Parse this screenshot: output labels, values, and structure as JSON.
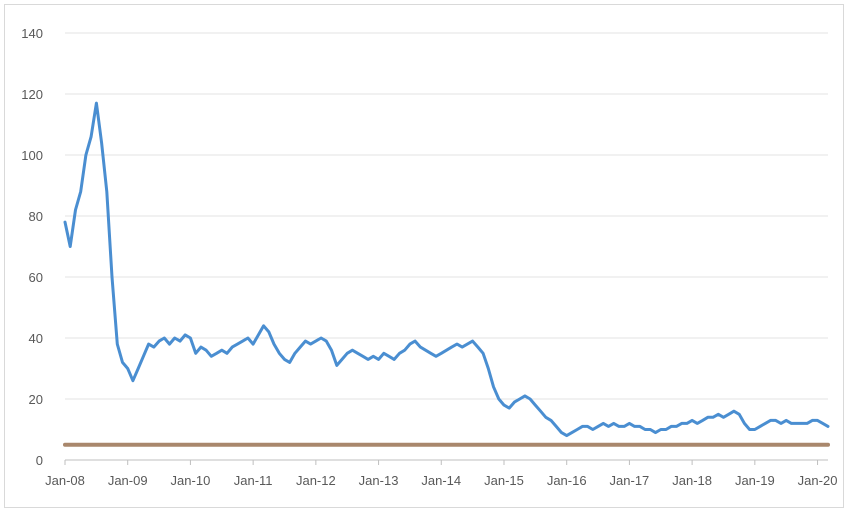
{
  "chart_data": {
    "type": "line",
    "title": "",
    "xlabel": "",
    "ylabel": "",
    "ylim": [
      0,
      140
    ],
    "yticks": [
      0,
      20,
      40,
      60,
      80,
      100,
      120,
      140
    ],
    "xlim": [
      "2008-01",
      "2020-03"
    ],
    "xticks": [
      {
        "label": "Jan-08",
        "date": "2008-01"
      },
      {
        "label": "Jan-09",
        "date": "2009-01"
      },
      {
        "label": "Jan-10",
        "date": "2010-01"
      },
      {
        "label": "Jan-11",
        "date": "2011-01"
      },
      {
        "label": "Jan-12",
        "date": "2012-01"
      },
      {
        "label": "Jan-13",
        "date": "2013-01"
      },
      {
        "label": "Jan-14",
        "date": "2014-01"
      },
      {
        "label": "Jan-15",
        "date": "2015-01"
      },
      {
        "label": "Jan-16",
        "date": "2016-01"
      },
      {
        "label": "Jan-17",
        "date": "2017-01"
      },
      {
        "label": "Jan-18",
        "date": "2018-01"
      },
      {
        "label": "Jan-19",
        "date": "2019-01"
      },
      {
        "label": "Jan-20",
        "date": "2020-01"
      }
    ],
    "grid": true,
    "legend": "none",
    "series": [
      {
        "color": "#4a8ed1",
        "points": [
          [
            "2008-01",
            78
          ],
          [
            "2008-02",
            70
          ],
          [
            "2008-03",
            82
          ],
          [
            "2008-04",
            88
          ],
          [
            "2008-05",
            100
          ],
          [
            "2008-06",
            106
          ],
          [
            "2008-07",
            117
          ],
          [
            "2008-08",
            104
          ],
          [
            "2008-09",
            88
          ],
          [
            "2008-10",
            60
          ],
          [
            "2008-11",
            38
          ],
          [
            "2008-12",
            32
          ],
          [
            "2009-01",
            30
          ],
          [
            "2009-02",
            26
          ],
          [
            "2009-03",
            30
          ],
          [
            "2009-04",
            34
          ],
          [
            "2009-05",
            38
          ],
          [
            "2009-06",
            37
          ],
          [
            "2009-07",
            39
          ],
          [
            "2009-08",
            40
          ],
          [
            "2009-09",
            38
          ],
          [
            "2009-10",
            40
          ],
          [
            "2009-11",
            39
          ],
          [
            "2009-12",
            41
          ],
          [
            "2010-01",
            40
          ],
          [
            "2010-02",
            35
          ],
          [
            "2010-03",
            37
          ],
          [
            "2010-04",
            36
          ],
          [
            "2010-05",
            34
          ],
          [
            "2010-06",
            35
          ],
          [
            "2010-07",
            36
          ],
          [
            "2010-08",
            35
          ],
          [
            "2010-09",
            37
          ],
          [
            "2010-10",
            38
          ],
          [
            "2010-11",
            39
          ],
          [
            "2010-12",
            40
          ],
          [
            "2011-01",
            38
          ],
          [
            "2011-02",
            41
          ],
          [
            "2011-03",
            44
          ],
          [
            "2011-04",
            42
          ],
          [
            "2011-05",
            38
          ],
          [
            "2011-06",
            35
          ],
          [
            "2011-07",
            33
          ],
          [
            "2011-08",
            32
          ],
          [
            "2011-09",
            35
          ],
          [
            "2011-10",
            37
          ],
          [
            "2011-11",
            39
          ],
          [
            "2011-12",
            38
          ],
          [
            "2012-01",
            39
          ],
          [
            "2012-02",
            40
          ],
          [
            "2012-03",
            39
          ],
          [
            "2012-04",
            36
          ],
          [
            "2012-05",
            31
          ],
          [
            "2012-06",
            33
          ],
          [
            "2012-07",
            35
          ],
          [
            "2012-08",
            36
          ],
          [
            "2012-09",
            35
          ],
          [
            "2012-10",
            34
          ],
          [
            "2012-11",
            33
          ],
          [
            "2012-12",
            34
          ],
          [
            "2013-01",
            33
          ],
          [
            "2013-02",
            35
          ],
          [
            "2013-03",
            34
          ],
          [
            "2013-04",
            33
          ],
          [
            "2013-05",
            35
          ],
          [
            "2013-06",
            36
          ],
          [
            "2013-07",
            38
          ],
          [
            "2013-08",
            39
          ],
          [
            "2013-09",
            37
          ],
          [
            "2013-10",
            36
          ],
          [
            "2013-11",
            35
          ],
          [
            "2013-12",
            34
          ],
          [
            "2014-01",
            35
          ],
          [
            "2014-02",
            36
          ],
          [
            "2014-03",
            37
          ],
          [
            "2014-04",
            38
          ],
          [
            "2014-05",
            37
          ],
          [
            "2014-06",
            38
          ],
          [
            "2014-07",
            39
          ],
          [
            "2014-08",
            37
          ],
          [
            "2014-09",
            35
          ],
          [
            "2014-10",
            30
          ],
          [
            "2014-11",
            24
          ],
          [
            "2014-12",
            20
          ],
          [
            "2015-01",
            18
          ],
          [
            "2015-02",
            17
          ],
          [
            "2015-03",
            19
          ],
          [
            "2015-04",
            20
          ],
          [
            "2015-05",
            21
          ],
          [
            "2015-06",
            20
          ],
          [
            "2015-07",
            18
          ],
          [
            "2015-08",
            16
          ],
          [
            "2015-09",
            14
          ],
          [
            "2015-10",
            13
          ],
          [
            "2015-11",
            11
          ],
          [
            "2015-12",
            9
          ],
          [
            "2016-01",
            8
          ],
          [
            "2016-02",
            9
          ],
          [
            "2016-03",
            10
          ],
          [
            "2016-04",
            11
          ],
          [
            "2016-05",
            11
          ],
          [
            "2016-06",
            10
          ],
          [
            "2016-07",
            11
          ],
          [
            "2016-08",
            12
          ],
          [
            "2016-09",
            11
          ],
          [
            "2016-10",
            12
          ],
          [
            "2016-11",
            11
          ],
          [
            "2016-12",
            11
          ],
          [
            "2017-01",
            12
          ],
          [
            "2017-02",
            11
          ],
          [
            "2017-03",
            11
          ],
          [
            "2017-04",
            10
          ],
          [
            "2017-05",
            10
          ],
          [
            "2017-06",
            9
          ],
          [
            "2017-07",
            10
          ],
          [
            "2017-08",
            10
          ],
          [
            "2017-09",
            11
          ],
          [
            "2017-10",
            11
          ],
          [
            "2017-11",
            12
          ],
          [
            "2017-12",
            12
          ],
          [
            "2018-01",
            13
          ],
          [
            "2018-02",
            12
          ],
          [
            "2018-03",
            13
          ],
          [
            "2018-04",
            14
          ],
          [
            "2018-05",
            14
          ],
          [
            "2018-06",
            15
          ],
          [
            "2018-07",
            14
          ],
          [
            "2018-08",
            15
          ],
          [
            "2018-09",
            16
          ],
          [
            "2018-10",
            15
          ],
          [
            "2018-11",
            12
          ],
          [
            "2018-12",
            10
          ],
          [
            "2019-01",
            10
          ],
          [
            "2019-02",
            11
          ],
          [
            "2019-03",
            12
          ],
          [
            "2019-04",
            13
          ],
          [
            "2019-05",
            13
          ],
          [
            "2019-06",
            12
          ],
          [
            "2019-07",
            13
          ],
          [
            "2019-08",
            12
          ],
          [
            "2019-09",
            12
          ],
          [
            "2019-10",
            12
          ],
          [
            "2019-11",
            12
          ],
          [
            "2019-12",
            13
          ],
          [
            "2020-01",
            13
          ],
          [
            "2020-02",
            12
          ],
          [
            "2020-03",
            11
          ]
        ]
      },
      {
        "color": "#a9876c",
        "points": [
          [
            "2008-01",
            5
          ],
          [
            "2020-03",
            5
          ]
        ]
      }
    ]
  }
}
